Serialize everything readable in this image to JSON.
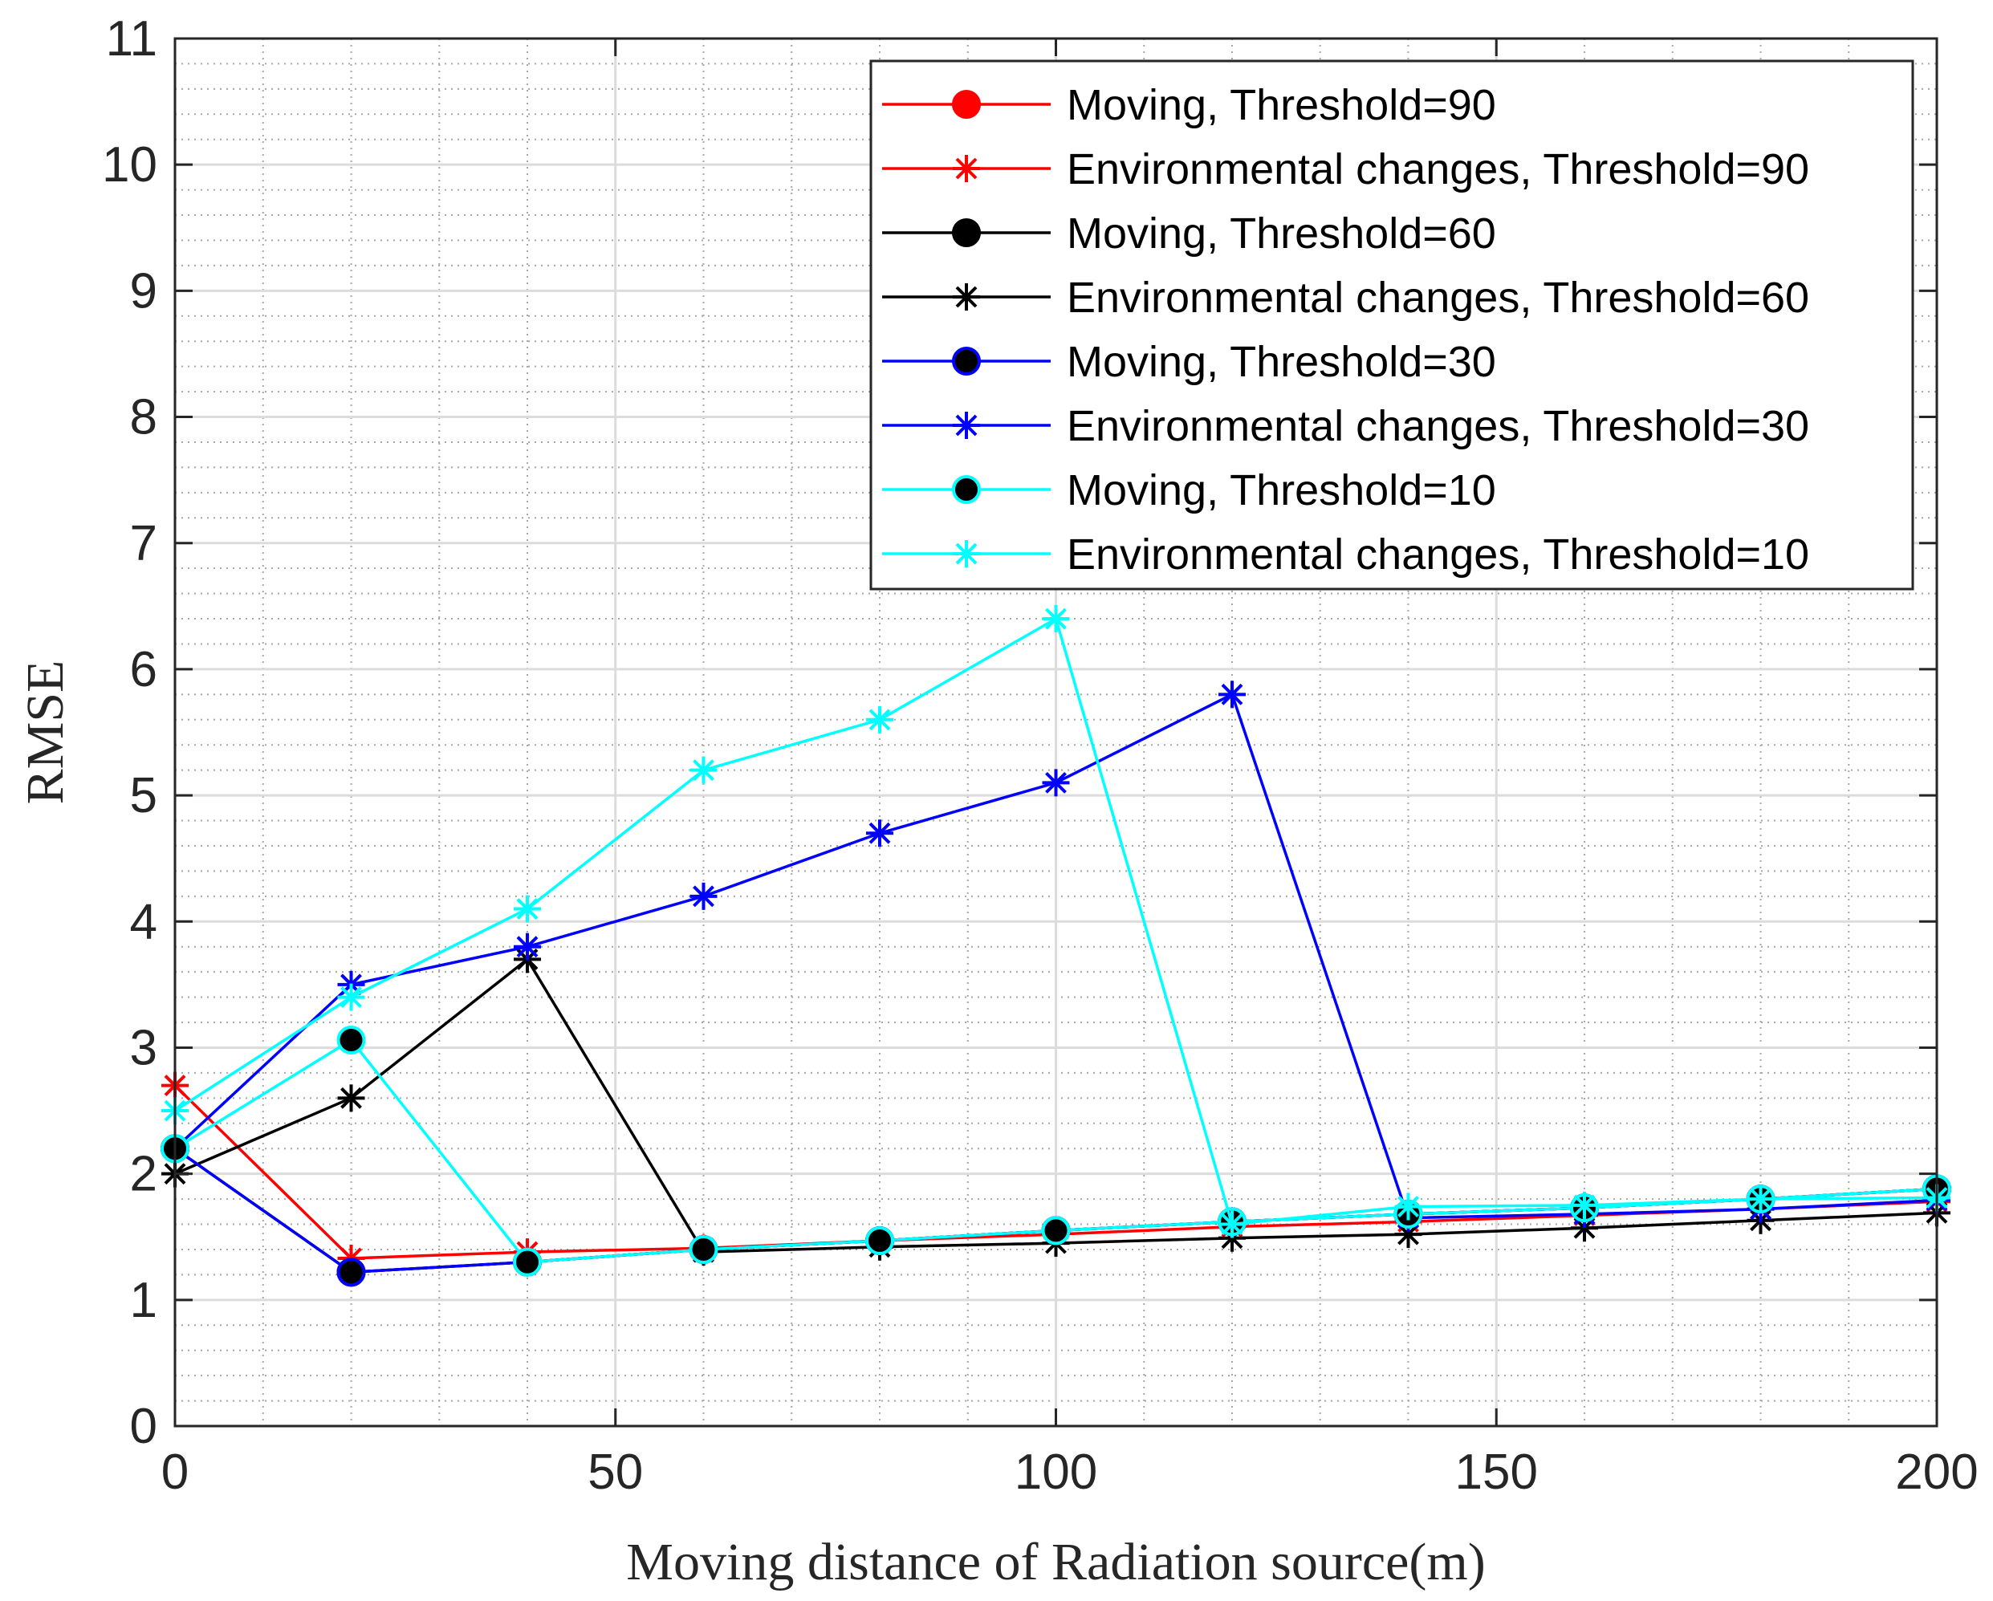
{
  "chart_data": {
    "type": "line",
    "title": "",
    "xlabel": "Moving distance of Radiation source(m)",
    "ylabel": "RMSE",
    "xlim": [
      0,
      200
    ],
    "ylim": [
      0,
      11
    ],
    "xticks": [
      0,
      50,
      100,
      150,
      200
    ],
    "yticks": [
      0,
      1,
      2,
      3,
      4,
      5,
      6,
      7,
      8,
      9,
      10,
      11
    ],
    "grid": true,
    "minor_grid": true,
    "legend_position": "top-right",
    "x": [
      0,
      20,
      40,
      60,
      80,
      100,
      120,
      140,
      160,
      180,
      200
    ],
    "series": [
      {
        "name": "Moving, Threshold=90",
        "color": "#ff0000",
        "marker": "dot",
        "marker_fill": "#ff0000",
        "values": [
          2.2,
          1.22,
          1.3,
          1.4,
          1.47,
          1.55,
          1.62,
          1.68,
          1.73,
          1.8,
          1.88
        ]
      },
      {
        "name": "Environmental changes, Threshold=90",
        "color": "#ff0000",
        "marker": "star",
        "values": [
          2.7,
          1.33,
          1.38,
          1.41,
          1.47,
          1.52,
          1.58,
          1.62,
          1.67,
          1.72,
          1.78
        ]
      },
      {
        "name": "Moving, Threshold=60",
        "color": "#000000",
        "marker": "dot",
        "marker_fill": "#000000",
        "values": [
          2.2,
          1.22,
          1.3,
          1.4,
          1.47,
          1.55,
          1.62,
          1.68,
          1.73,
          1.8,
          1.88
        ]
      },
      {
        "name": "Environmental changes, Threshold=60",
        "color": "#000000",
        "marker": "star",
        "values": [
          2.0,
          2.6,
          3.7,
          1.38,
          1.42,
          1.45,
          1.49,
          1.52,
          1.57,
          1.63,
          1.69
        ]
      },
      {
        "name": "Moving, Threshold=30",
        "color": "#0000ff",
        "marker": "dot",
        "marker_fill": "#000000",
        "values": [
          2.2,
          1.22,
          1.3,
          1.4,
          1.47,
          1.55,
          1.62,
          1.68,
          1.73,
          1.8,
          1.88
        ]
      },
      {
        "name": "Environmental changes, Threshold=30",
        "color": "#0000ff",
        "marker": "star",
        "values": [
          2.2,
          3.5,
          3.8,
          4.2,
          4.7,
          5.1,
          5.8,
          1.65,
          1.68,
          1.72,
          1.79
        ]
      },
      {
        "name": "Moving, Threshold=10",
        "color": "#00ffff",
        "marker": "dot",
        "marker_fill": "#000000",
        "values": [
          2.2,
          3.06,
          1.3,
          1.4,
          1.47,
          1.55,
          1.62,
          1.68,
          1.73,
          1.8,
          1.88
        ]
      },
      {
        "name": "Environmental changes, Threshold=10",
        "color": "#00ffff",
        "marker": "star",
        "values": [
          2.5,
          3.4,
          4.1,
          5.2,
          5.6,
          6.4,
          1.6,
          1.74,
          1.75,
          1.8,
          1.81
        ]
      }
    ]
  }
}
